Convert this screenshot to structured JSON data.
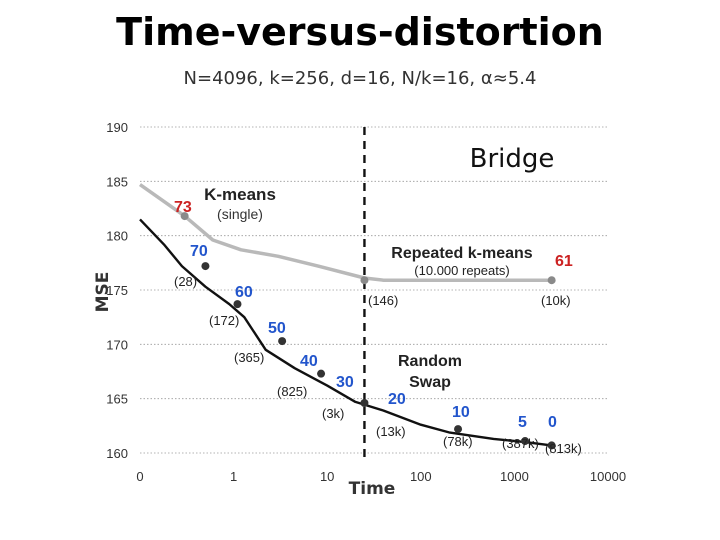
{
  "slide": {
    "title": "Time-versus-distortion",
    "subtitle": "N=4096, k=256, d=16, N/k=16, α≈5.4"
  },
  "chart_data": {
    "type": "line",
    "title": "Bridge",
    "xlabel": "Time",
    "ylabel": "MSE",
    "xscale": "log",
    "xlim": [
      0.1,
      10000
    ],
    "ylim": [
      160,
      190
    ],
    "x_tick_labels": [
      "0",
      "1",
      "10",
      "100",
      "1000",
      "10000"
    ],
    "x_tick_values": [
      0.1,
      1,
      10,
      100,
      1000,
      10000
    ],
    "y_ticks": [
      160,
      165,
      170,
      175,
      180,
      185,
      190
    ],
    "grid": true,
    "colors": {
      "kmeans": "#b9b9b9",
      "swap": "#111111",
      "red": "#cc2222",
      "blue": "#2255cc",
      "grid": "#9a9a9a"
    },
    "vertical_line": {
      "x": 25,
      "style": "dashed"
    },
    "series": [
      {
        "name": "K-means (single) / Repeated k-means",
        "color": "#b9b9b9",
        "x": [
          0.1,
          0.3,
          0.6,
          1.2,
          3,
          8,
          25,
          40,
          100,
          500,
          2500
        ],
        "y": [
          184.7,
          181.8,
          179.6,
          178.7,
          178.1,
          177.2,
          176.1,
          175.9,
          175.9,
          175.9,
          175.9
        ]
      },
      {
        "name": "Random Swap",
        "color": "#111111",
        "x": [
          0.1,
          0.18,
          0.28,
          0.5,
          0.9,
          1.3,
          2.2,
          4.5,
          10,
          20,
          40,
          100,
          200,
          600,
          1300,
          2500
        ],
        "y": [
          181.5,
          179.2,
          177.2,
          175.3,
          173.7,
          172.5,
          169.5,
          167.8,
          166.2,
          164.7,
          163.9,
          162.6,
          161.9,
          161.3,
          161.0,
          160.7
        ]
      }
    ],
    "points": [
      {
        "series": "kmeans",
        "x": 0.3,
        "y": 181.8
      },
      {
        "series": "kmeans",
        "x": 25,
        "y": 175.9
      },
      {
        "series": "kmeans",
        "x": 2500,
        "y": 175.9
      },
      {
        "series": "swap",
        "x": 0.5,
        "y": 177.2
      },
      {
        "series": "swap",
        "x": 1.1,
        "y": 173.7
      },
      {
        "series": "swap",
        "x": 3.3,
        "y": 170.3
      },
      {
        "series": "swap",
        "x": 8.6,
        "y": 167.3
      },
      {
        "series": "swap",
        "x": 25,
        "y": 164.6
      },
      {
        "series": "swap",
        "x": 250,
        "y": 162.2
      },
      {
        "series": "swap",
        "x": 1300,
        "y": 161.1
      },
      {
        "series": "swap",
        "x": 2500,
        "y": 160.7
      }
    ],
    "annotations": [
      {
        "text": "K-means",
        "style": "bold"
      },
      {
        "text": "(single)",
        "style": "normal"
      },
      {
        "text": "Repeated k-means",
        "style": "bold"
      },
      {
        "text": "(10.000 repeats)",
        "style": "normal"
      },
      {
        "text": "Random",
        "style": "bold"
      },
      {
        "text": "Swap",
        "style": "bold"
      }
    ],
    "data_labels": [
      {
        "text": "73",
        "color": "red"
      },
      {
        "text": "61",
        "color": "red"
      },
      {
        "text": "70",
        "color": "blue"
      },
      {
        "text": "60",
        "color": "blue"
      },
      {
        "text": "50",
        "color": "blue"
      },
      {
        "text": "40",
        "color": "blue"
      },
      {
        "text": "30",
        "color": "blue"
      },
      {
        "text": "20",
        "color": "blue"
      },
      {
        "text": "10",
        "color": "blue"
      },
      {
        "text": "5",
        "color": "blue"
      },
      {
        "text": "0",
        "color": "blue"
      }
    ],
    "time_labels": [
      "(28)",
      "(172)",
      "(365)",
      "(825)",
      "(3k)",
      "(13k)",
      "(78k)",
      "(387k)",
      "(813k)",
      "(146)",
      "(10k)"
    ]
  }
}
